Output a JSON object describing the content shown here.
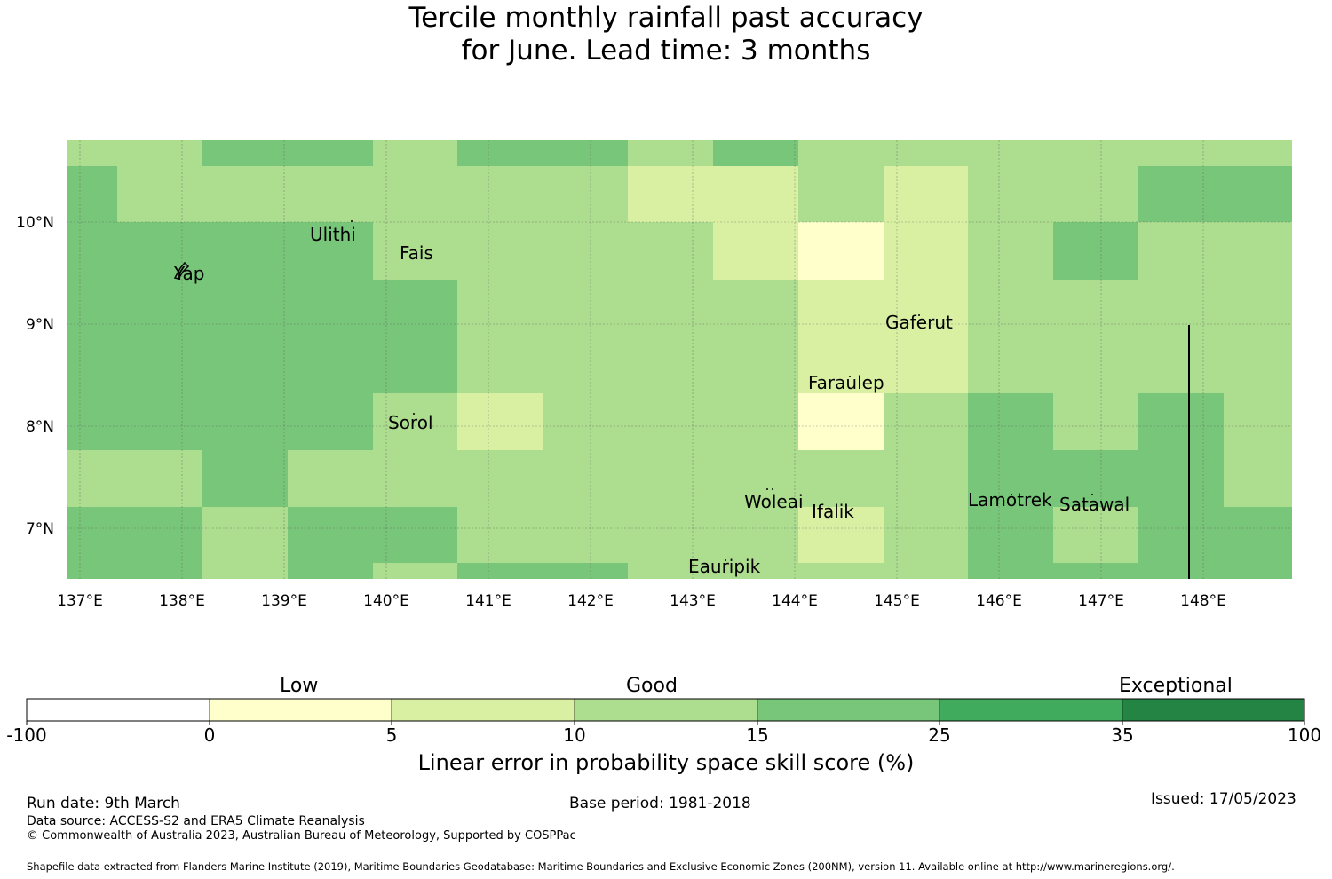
{
  "title": {
    "line1": "Tercile monthly rainfall past accuracy",
    "line2": "for June. Lead time: 3 months"
  },
  "map": {
    "lon_range": [
      137,
      149
    ],
    "lat_range": [
      6.5,
      10.8
    ],
    "x_ticks": [
      "137°E",
      "138°E",
      "139°E",
      "140°E",
      "141°E",
      "142°E",
      "143°E",
      "144°E",
      "145°E",
      "146°E",
      "147°E",
      "148°E"
    ],
    "y_ticks": [
      "10°N",
      "9°N",
      "8°N",
      "7°N"
    ],
    "places": [
      "Yap",
      "Ulithi",
      "Fais",
      "Gaferut",
      "Faraulep",
      "Sorol",
      "Woleai",
      "Ifalik",
      "Lamotrek",
      "Satawal",
      "Eauripik"
    ]
  },
  "colorbar": {
    "categories": [
      "Low",
      "Good",
      "Exceptional"
    ],
    "ticks": [
      "-100",
      "0",
      "5",
      "10",
      "15",
      "25",
      "35",
      "100"
    ],
    "colors": [
      "#ffffff",
      "#ffffcc",
      "#d9f0a3",
      "#addd8e",
      "#78c679",
      "#41ab5d",
      "#238443"
    ],
    "label": "Linear error in probability space skill score (%)"
  },
  "footer": {
    "run_date": "Run date: 9th March",
    "base_period": "Base period: 1981-2018",
    "issued": "Issued: 17/05/2023",
    "data_source": "Data source: ACCESS-S2 and ERA5 Climate Reanalysis",
    "copyright": "© Commonwealth of Australia 2023, Australian Bureau of Meteorology, Supported by COSPPac",
    "shapefile": "Shapefile data extracted from Flanders Marine Institute (2019), Maritime Boundaries Geodatabase: Maritime Boundaries and Exclusive Economic Zones (200NM), version 11. Available online at http://www.marineregions.org/."
  }
}
